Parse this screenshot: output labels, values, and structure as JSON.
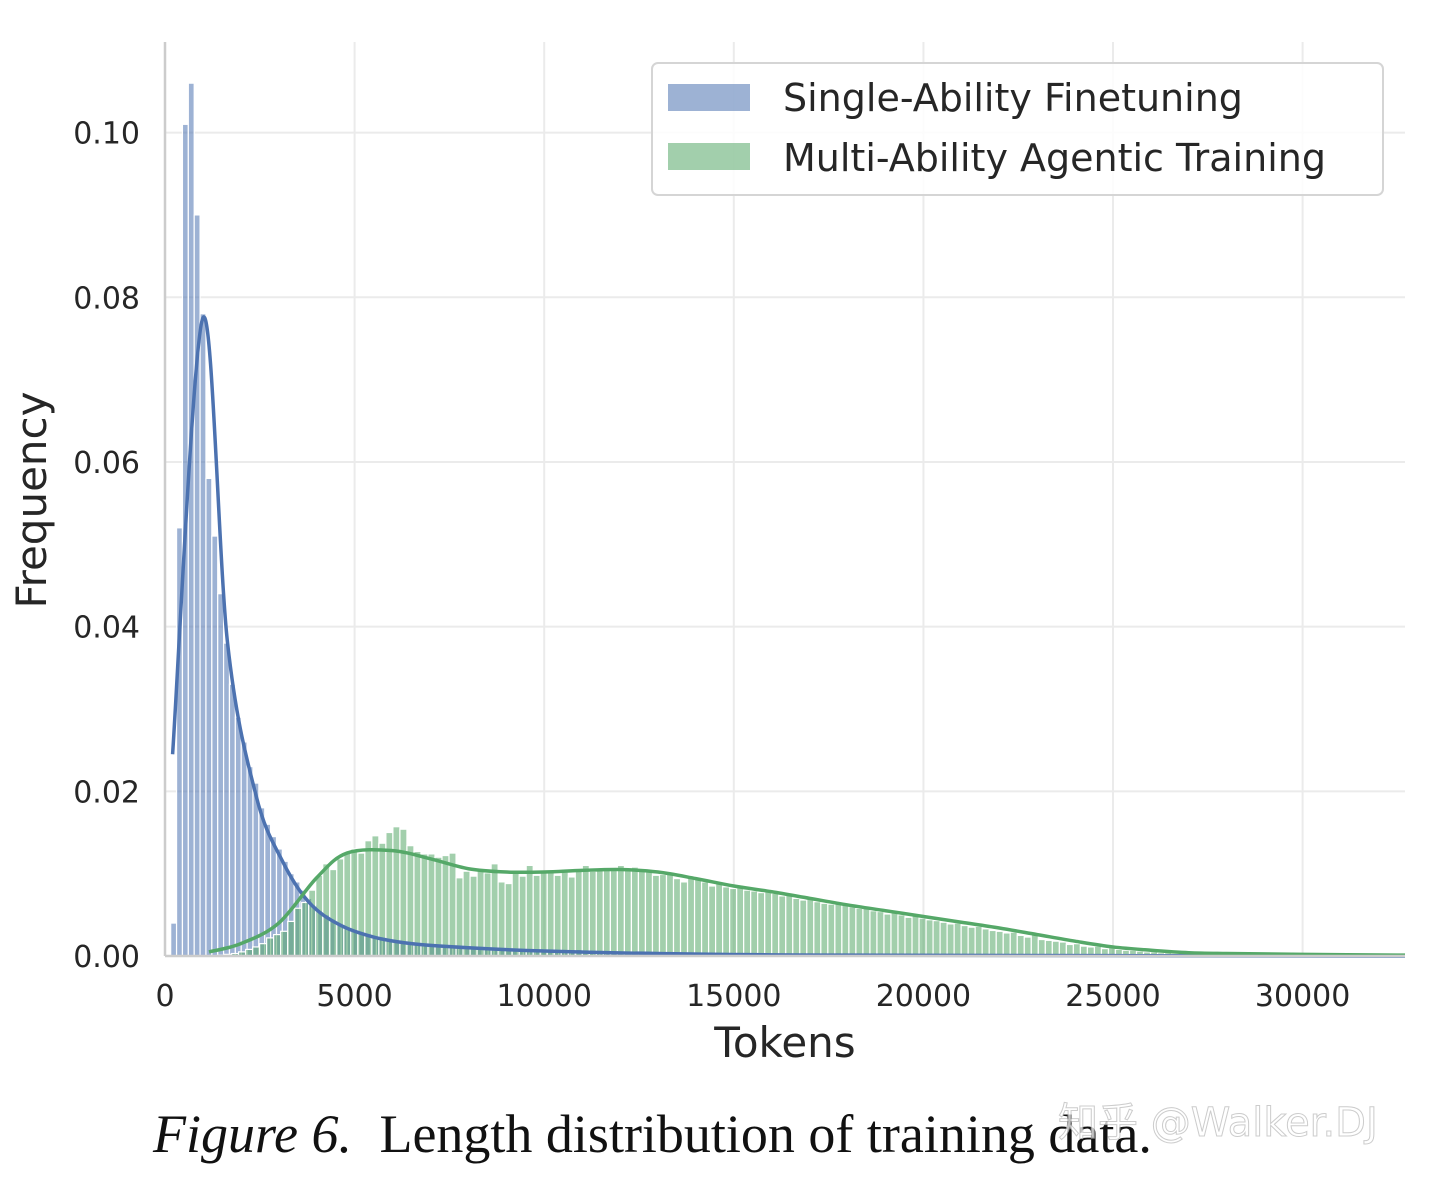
{
  "chart_data": {
    "type": "histogram",
    "xlabel": "Tokens",
    "ylabel": "Frequency",
    "xlim": [
      0,
      32700
    ],
    "ylim": [
      0,
      0.111
    ],
    "xticks": [
      0,
      5000,
      10000,
      15000,
      20000,
      25000,
      30000
    ],
    "yticks": [
      "0.00",
      "0.02",
      "0.04",
      "0.06",
      "0.08",
      "0.10"
    ],
    "grid": true,
    "legend_position": "top-right",
    "series": [
      {
        "name": "Single-Ability Finetuning",
        "color": "#4c72b0",
        "bin_start": 150,
        "bin_width": 155,
        "values": [
          0.004,
          0.052,
          0.101,
          0.106,
          0.09,
          0.078,
          0.058,
          0.051,
          0.044,
          0.038,
          0.033,
          0.029,
          0.026,
          0.023,
          0.021,
          0.018,
          0.016,
          0.0145,
          0.013,
          0.0115,
          0.01,
          0.009,
          0.008,
          0.007,
          0.0062,
          0.0055,
          0.005,
          0.0045,
          0.004,
          0.0036,
          0.0033,
          0.003,
          0.0028,
          0.0026,
          0.0024,
          0.0022,
          0.002,
          0.0019,
          0.0018,
          0.0017,
          0.0016,
          0.0015,
          0.0014,
          0.0013,
          0.0012,
          0.0012,
          0.0011,
          0.0011,
          0.001,
          0.001,
          0.0009,
          0.0009,
          0.0009,
          0.0009,
          0.0009,
          0.0009,
          0.0009,
          0.0009,
          0.0009,
          0.0009,
          0.0008,
          0.0008,
          0.0008,
          0.0008,
          0.0008,
          0.0008,
          0.0008,
          0.0008,
          0.0008,
          0.0008,
          0.0006,
          0.0006,
          0.0006,
          0.0006,
          0.0006,
          0.0006,
          0.0006,
          0.0006,
          0.0006,
          0.0006,
          0.0005,
          0.0005,
          0.0005,
          0.0005,
          0.0005,
          0.0005,
          0.0005,
          0.0005,
          0.0005,
          0.0005,
          0.0004,
          0.0004,
          0.0004,
          0.0004,
          0.0004,
          0.0004,
          0.0004,
          0.0004,
          0.0004,
          0.0004,
          0.0003,
          0.0003,
          0.0003,
          0.0003,
          0.0003,
          0.0003,
          0.0003,
          0.0003,
          0.0003,
          0.0003,
          0.0003,
          0.0003,
          0.0003,
          0.0003,
          0.0003,
          0.0003,
          0.0003,
          0.0003,
          0.0003,
          0.0003,
          0.0002,
          0.0002,
          0.0002,
          0.0002,
          0.0002,
          0.0002,
          0.0002,
          0.0002,
          0.0002,
          0.0002,
          0.0002,
          0.0002,
          0.0002,
          0.0002,
          0.0002,
          0.0002,
          0.0002,
          0.0002,
          0.0002,
          0.0002,
          0.0001,
          0.0001,
          0.0001,
          0.0001,
          0.0001,
          0.0001,
          0.0001,
          0.0001,
          0.0001,
          0.0001,
          0.0001,
          0.0001,
          0.0001,
          0.0001,
          0.0001,
          0.0001,
          0.0001,
          0.0001,
          0.0001,
          0.0001,
          0.0001,
          0.0001,
          0.0001,
          0.0001,
          0.0001,
          0.0001,
          0.0001,
          0.0001,
          0.0001,
          0.0001,
          0.0001,
          0.0001,
          0.0001,
          0.0001,
          0.0001,
          0.0001,
          0.0001,
          0.0001,
          0.0001,
          0.0001
        ],
        "kde": [
          [
            200,
            0.0245
          ],
          [
            1000,
            0.0775
          ],
          [
            1650,
            0.038
          ],
          [
            2400,
            0.0195
          ],
          [
            3100,
            0.0115
          ],
          [
            3800,
            0.0065
          ],
          [
            4600,
            0.0038
          ],
          [
            5500,
            0.0023
          ],
          [
            6500,
            0.0015
          ],
          [
            8000,
            0.001
          ],
          [
            10000,
            0.0006
          ],
          [
            13000,
            0.0003
          ],
          [
            18000,
            0.0001
          ],
          [
            32700,
            0.0
          ]
        ]
      },
      {
        "name": "Multi-Ability Agentic Training",
        "color": "#55a868",
        "bin_start": 1200,
        "bin_width": 185,
        "values": [
          0.0,
          0.0001,
          0.0002,
          0.0003,
          0.0005,
          0.0008,
          0.0011,
          0.0015,
          0.0022,
          0.0026,
          0.003,
          0.0042,
          0.0058,
          0.0065,
          0.008,
          0.0098,
          0.0112,
          0.0105,
          0.0118,
          0.0125,
          0.013,
          0.0125,
          0.014,
          0.0146,
          0.0137,
          0.015,
          0.0157,
          0.0154,
          0.0134,
          0.0127,
          0.0124,
          0.0124,
          0.012,
          0.0122,
          0.0125,
          0.0095,
          0.0103,
          0.0097,
          0.0105,
          0.0101,
          0.0112,
          0.009,
          0.0088,
          0.0103,
          0.0097,
          0.011,
          0.0098,
          0.0101,
          0.0104,
          0.0098,
          0.0102,
          0.0096,
          0.0105,
          0.011,
          0.0103,
          0.0107,
          0.0104,
          0.0106,
          0.011,
          0.0105,
          0.0108,
          0.0106,
          0.0104,
          0.0098,
          0.0099,
          0.0102,
          0.0094,
          0.009,
          0.0095,
          0.0093,
          0.009,
          0.0085,
          0.0088,
          0.0084,
          0.0082,
          0.0086,
          0.008,
          0.0079,
          0.0077,
          0.0081,
          0.0076,
          0.0073,
          0.0074,
          0.007,
          0.0068,
          0.0071,
          0.0066,
          0.0064,
          0.0063,
          0.0066,
          0.0062,
          0.006,
          0.0058,
          0.0059,
          0.0055,
          0.0054,
          0.0051,
          0.0053,
          0.005,
          0.0047,
          0.0049,
          0.0046,
          0.0044,
          0.0043,
          0.0041,
          0.0039,
          0.004,
          0.0037,
          0.0035,
          0.0036,
          0.0033,
          0.0031,
          0.003,
          0.0028,
          0.0029,
          0.0025,
          0.0023,
          0.0026,
          0.002,
          0.0019,
          0.0018,
          0.0017,
          0.0014,
          0.0015,
          0.0012,
          0.0011,
          0.0012,
          0.0009,
          0.001,
          0.0008,
          0.0007,
          0.0007,
          0.0006,
          0.0005,
          0.0005,
          0.0004,
          0.0004,
          0.0003,
          0.0003,
          0.0003,
          0.0002,
          0.0002,
          0.0002,
          0.0002,
          0.0002,
          0.0002,
          0.0002,
          0.0002,
          0.0002,
          0.0002,
          0.0001,
          0.0001,
          0.0001,
          0.0001,
          0.0001,
          0.0001,
          0.0001,
          0.0001,
          0.0001,
          0.0001,
          0.0001,
          0.0001,
          0.0001,
          0.0001,
          0.0001,
          0.0001,
          0.0001,
          0.0001,
          0.0001,
          0.0001
        ],
        "kde": [
          [
            1160,
            0.0005
          ],
          [
            2000,
            0.0015
          ],
          [
            3000,
            0.004
          ],
          [
            4000,
            0.0095
          ],
          [
            4800,
            0.0125
          ],
          [
            6000,
            0.0128
          ],
          [
            7000,
            0.0118
          ],
          [
            8000,
            0.0106
          ],
          [
            9000,
            0.0102
          ],
          [
            10000,
            0.0102
          ],
          [
            11000,
            0.0104
          ],
          [
            12000,
            0.0105
          ],
          [
            13000,
            0.0102
          ],
          [
            14000,
            0.0094
          ],
          [
            15000,
            0.0085
          ],
          [
            16000,
            0.0078
          ],
          [
            17000,
            0.007
          ],
          [
            18000,
            0.0062
          ],
          [
            19000,
            0.0055
          ],
          [
            20000,
            0.0048
          ],
          [
            21000,
            0.0041
          ],
          [
            22000,
            0.0034
          ],
          [
            23000,
            0.0026
          ],
          [
            24000,
            0.0018
          ],
          [
            25000,
            0.0011
          ],
          [
            26000,
            0.0007
          ],
          [
            27000,
            0.0004
          ],
          [
            28000,
            0.0003
          ],
          [
            30000,
            0.0002
          ],
          [
            32700,
            0.0001
          ]
        ]
      }
    ]
  },
  "caption": {
    "label": "Figure 6.",
    "text": "Length distribution of training data."
  },
  "watermark": "知乎 @Walker.DJ"
}
